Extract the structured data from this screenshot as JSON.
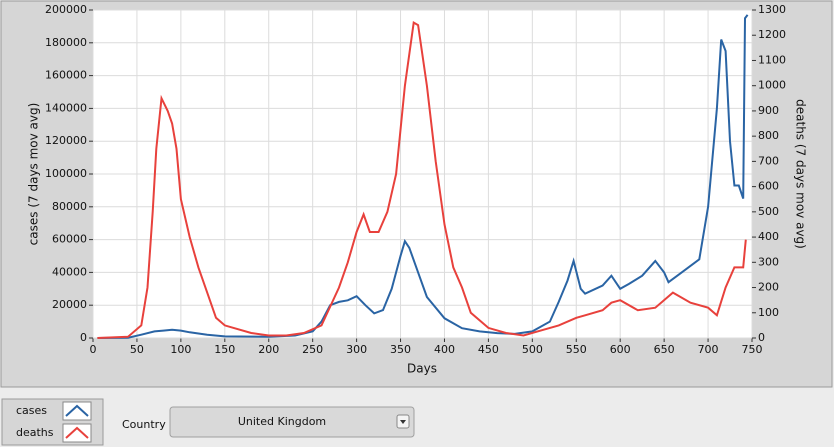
{
  "chart_data": {
    "type": "line",
    "xlabel": "Days",
    "ylabel": "cases  (7 days mov avg)",
    "y2label": "deaths  (7 days mov avg)",
    "xlim": [
      0,
      750
    ],
    "xticks": [
      0,
      50,
      100,
      150,
      200,
      250,
      300,
      350,
      400,
      450,
      500,
      550,
      600,
      650,
      700,
      750
    ],
    "ylim": [
      0,
      200000
    ],
    "yticks": [
      0,
      20000,
      40000,
      60000,
      80000,
      100000,
      120000,
      140000,
      160000,
      180000,
      200000
    ],
    "y2lim": [
      0,
      1300
    ],
    "y2ticks": [
      0,
      100,
      200,
      300,
      400,
      500,
      600,
      700,
      800,
      900,
      1000,
      1100,
      1200,
      1300
    ],
    "grid": true,
    "series": [
      {
        "name": "cases",
        "color": "#2a64a4",
        "axis": "y",
        "x": [
          5,
          40,
          55,
          70,
          80,
          90,
          100,
          110,
          130,
          150,
          200,
          230,
          250,
          260,
          270,
          280,
          290,
          300,
          310,
          320,
          330,
          340,
          350,
          355,
          360,
          370,
          380,
          400,
          420,
          440,
          460,
          480,
          500,
          520,
          530,
          540,
          547,
          555,
          560,
          580,
          590,
          600,
          610,
          625,
          640,
          650,
          655,
          670,
          690,
          700,
          710,
          715,
          720,
          725,
          730,
          735,
          740,
          742,
          745
        ],
        "values": [
          0,
          200,
          2000,
          4000,
          4500,
          5000,
          4500,
          3500,
          2000,
          1000,
          800,
          1500,
          4000,
          10000,
          20000,
          22000,
          23000,
          25500,
          20000,
          15000,
          17000,
          30000,
          50000,
          59000,
          55000,
          40000,
          25000,
          12000,
          6000,
          4000,
          3000,
          2500,
          4000,
          10000,
          22000,
          35000,
          47000,
          30000,
          27000,
          32000,
          38000,
          30000,
          33000,
          38000,
          47000,
          40000,
          34000,
          40000,
          48000,
          80000,
          140000,
          182000,
          175000,
          120000,
          93000,
          93000,
          85000,
          195000,
          197000
        ]
      },
      {
        "name": "deaths",
        "color": "#e8413c",
        "axis": "y2",
        "x": [
          5,
          40,
          55,
          62,
          68,
          72,
          78,
          85,
          90,
          95,
          100,
          110,
          120,
          130,
          140,
          150,
          160,
          180,
          200,
          220,
          240,
          260,
          280,
          290,
          300,
          308,
          315,
          325,
          335,
          345,
          355,
          365,
          370,
          380,
          390,
          400,
          410,
          420,
          430,
          450,
          470,
          490,
          510,
          530,
          550,
          560,
          580,
          590,
          600,
          620,
          640,
          660,
          680,
          700,
          710,
          720,
          730,
          740,
          743
        ],
        "values": [
          0,
          5,
          50,
          200,
          500,
          750,
          950,
          900,
          850,
          750,
          550,
          400,
          280,
          180,
          80,
          50,
          40,
          20,
          10,
          10,
          20,
          50,
          200,
          300,
          420,
          490,
          420,
          420,
          500,
          650,
          1000,
          1250,
          1240,
          1000,
          700,
          450,
          280,
          200,
          100,
          40,
          20,
          10,
          30,
          50,
          80,
          90,
          110,
          140,
          150,
          110,
          120,
          180,
          140,
          120,
          90,
          200,
          280,
          280,
          390
        ]
      }
    ]
  },
  "controls": {
    "country_label": "Country",
    "country_select": "United Kingdom"
  }
}
